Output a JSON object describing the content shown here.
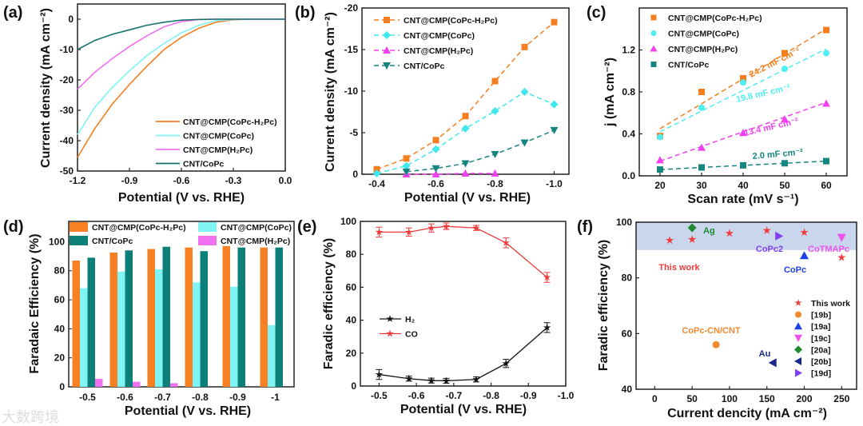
{
  "watermark": "大数跨境",
  "chart_data": [
    {
      "type": "line",
      "panel_label": "(a)",
      "xlabel": "Potential (V vs. RHE)",
      "ylabel": "Current density (mA cm⁻²)",
      "xlim": [
        -1.2,
        0
      ],
      "ylim": [
        -50,
        5
      ],
      "xticks": [
        -1.2,
        -0.9,
        -0.6,
        -0.3,
        0
      ],
      "xtick_labels": [
        "-1.2",
        "-0.9",
        "-0.6",
        "-0.3",
        "0.0"
      ],
      "yticks": [
        0,
        -10,
        -20,
        -30,
        -40,
        -50
      ],
      "ytick_labels": [
        "0",
        "-10",
        "-20",
        "-30",
        "-40",
        "-50"
      ],
      "x": [
        -1.2,
        -1.1,
        -1.0,
        -0.9,
        -0.8,
        -0.7,
        -0.6,
        -0.5,
        -0.4,
        -0.3,
        -0.2,
        -0.1,
        0
      ],
      "series": [
        {
          "name": "CNT@CMP(CoPc-H₂Pc)",
          "color": "#f47f20",
          "y": [
            -45.5,
            -36,
            -28,
            -21.5,
            -15.5,
            -10,
            -6,
            -3,
            -1,
            -0.2,
            0,
            0,
            0
          ]
        },
        {
          "name": "CNT@CMP(CoPc)",
          "color": "#7ff3f3",
          "y": [
            -38,
            -29,
            -22.5,
            -17,
            -12,
            -8,
            -4.5,
            -2,
            -0.5,
            -0.1,
            0,
            0,
            0
          ]
        },
        {
          "name": "CNT@CMP(H₂Pc)",
          "color": "#f070f0",
          "y": [
            -23,
            -17.5,
            -13,
            -9,
            -5.5,
            -2.5,
            -0.8,
            -0.1,
            0,
            0,
            0,
            0,
            0
          ]
        },
        {
          "name": "CNT/CoPc",
          "color": "#16716c",
          "y": [
            -10,
            -7,
            -5,
            -3.5,
            -2,
            -1,
            -0.3,
            -0.1,
            0,
            0,
            0,
            0,
            0
          ]
        }
      ],
      "legend": "bottom-right"
    },
    {
      "type": "line",
      "panel_label": "(b)",
      "xlabel": "Potential (V vs. RHE)",
      "ylabel": "Current density (mA cm⁻²)",
      "xlim": [
        -0.35,
        -1.05
      ],
      "ylim": [
        0,
        -20
      ],
      "xticks": [
        -0.4,
        -0.6,
        -0.8,
        -1.0
      ],
      "xtick_labels": [
        "-0.4",
        "-0.6",
        "-0.8",
        "-1.0"
      ],
      "yticks": [
        0,
        -5,
        -10,
        -15,
        -20
      ],
      "ytick_labels": [
        "0",
        "-5",
        "-10",
        "-15",
        "-20"
      ],
      "series": [
        {
          "name": "CNT@CMP(CoPc-H₂Pc)",
          "color": "#f47f20",
          "marker": "square",
          "x": [
            -0.4,
            -0.5,
            -0.6,
            -0.7,
            -0.8,
            -0.9,
            -1.0
          ],
          "y": [
            -0.6,
            -1.9,
            -4.1,
            -7.0,
            -11.2,
            -15.3,
            -18.3
          ]
        },
        {
          "name": "CNT@CMP(CoPc)",
          "color": "#3ee8ee",
          "marker": "diamond",
          "x": [
            -0.4,
            -0.5,
            -0.6,
            -0.7,
            -0.8,
            -0.9,
            -1.0
          ],
          "y": [
            -0.1,
            -1.0,
            -3.0,
            -5.5,
            -7.6,
            -9.9,
            -8.4
          ]
        },
        {
          "name": "CNT@CMP(H₂Pc)",
          "color": "#f040f0",
          "marker": "triUp",
          "x": [
            -0.5,
            -0.6,
            -0.7,
            -0.8
          ],
          "y": [
            0,
            0,
            -0.1,
            -0.1
          ]
        },
        {
          "name": "CNT/CoPc",
          "color": "#15857f",
          "marker": "triDown",
          "x": [
            -0.5,
            -0.6,
            -0.7,
            -0.8,
            -0.9,
            -1.0
          ],
          "y": [
            -0.3,
            -0.7,
            -1.3,
            -2.4,
            -3.8,
            -5.3
          ]
        }
      ],
      "legend": "top-left"
    },
    {
      "type": "scatter",
      "panel_label": "(c)",
      "xlabel": "Scan rate (mV s⁻¹)",
      "ylabel": "j (mA cm⁻²)",
      "xlim": [
        15,
        65
      ],
      "ylim": [
        0,
        1.6
      ],
      "xticks": [
        20,
        30,
        40,
        50,
        60
      ],
      "xtick_labels": [
        "20",
        "30",
        "40",
        "50",
        "60"
      ],
      "yticks": [
        0,
        0.4,
        0.8,
        1.2
      ],
      "ytick_labels": [
        "0.0",
        "0.4",
        "0.8",
        "1.2"
      ],
      "x": [
        20,
        30,
        40,
        50,
        60
      ],
      "series": [
        {
          "name": "CNT@CMP(CoPc-H₂Pc)",
          "color": "#f47f20",
          "marker": "square",
          "y": [
            0.38,
            0.8,
            0.93,
            1.17,
            1.39
          ],
          "fit": [
            0.45,
            1.4
          ],
          "annotation": "24.2 mF cm⁻²"
        },
        {
          "name": "CNT@CMP(CoPc)",
          "color": "#50eef0",
          "marker": "circle",
          "y": [
            0.37,
            0.65,
            0.89,
            1.02,
            1.17
          ],
          "fit": [
            0.42,
            1.21
          ],
          "annotation": "19.8 mF cm⁻²"
        },
        {
          "name": "CNT@CMP(H₂Pc)",
          "color": "#f040f0",
          "marker": "triUp",
          "y": [
            0.15,
            0.27,
            0.41,
            0.54,
            0.69
          ],
          "fit": [
            0.14,
            0.7
          ],
          "annotation": "13.4 mF cm⁻²"
        },
        {
          "name": "CNT/CoPc",
          "color": "#15857f",
          "marker": "square",
          "y": [
            0.06,
            0.08,
            0.1,
            0.12,
            0.14
          ],
          "fit": [
            0.06,
            0.14
          ],
          "annotation": "2.0 mF cm⁻²"
        }
      ],
      "legend": "top-left"
    },
    {
      "type": "bar",
      "panel_label": "(d)",
      "xlabel": "Potential (V vs. RHE)",
      "ylabel": "Faradaic Efficiency (%)",
      "ylim": [
        0,
        114
      ],
      "categories": [
        "-0.5",
        "-0.6",
        "-0.7",
        "-0.8",
        "-0.9",
        "-1"
      ],
      "yticks": [
        0,
        20,
        40,
        60,
        80,
        100
      ],
      "ytick_labels": [
        "0",
        "20",
        "40",
        "60",
        "80",
        "100"
      ],
      "series": [
        {
          "name": "CNT@CMP(CoPc-H₂Pc)",
          "color": "#f68022",
          "values": [
            87,
            92.5,
            95,
            96,
            97,
            96
          ]
        },
        {
          "name": "CNT@CMP(CoPc)",
          "color": "#80f4f4",
          "values": [
            68,
            79.5,
            81,
            72,
            69,
            42.5
          ]
        },
        {
          "name": "CNT/CoPc",
          "color": "#0b7f78",
          "values": [
            89,
            94,
            96.5,
            93.5,
            96,
            96
          ]
        },
        {
          "name": "CNT@CMP(H₂Pc)",
          "color": "#f070f0",
          "values": [
            5.5,
            3.5,
            2.5,
            0,
            0,
            0
          ]
        }
      ],
      "legend": "top"
    },
    {
      "type": "line",
      "panel_label": "(e)",
      "xlabel": "Potential (V vs. RHE)",
      "ylabel": "Faradic efficiency (%)",
      "xlim": [
        -0.45,
        -1.0
      ],
      "ylim": [
        0,
        100
      ],
      "xticks": [
        -0.5,
        -0.6,
        -0.7,
        -0.8,
        -0.9,
        -1.0
      ],
      "xtick_labels": [
        "-0.5",
        "-0.6",
        "-0.7",
        "-0.8",
        "-0.9",
        "-1.0"
      ],
      "yticks": [
        0,
        20,
        40,
        60,
        80,
        100
      ],
      "ytick_labels": [
        "0",
        "20",
        "40",
        "60",
        "80",
        "100"
      ],
      "x": [
        -0.5,
        -0.58,
        -0.64,
        -0.68,
        -0.76,
        -0.84,
        -0.95
      ],
      "series": [
        {
          "name": "H₂",
          "color": "#111111",
          "marker": "star",
          "y": [
            7,
            4.5,
            3.3,
            3.2,
            4,
            13.7,
            35.5
          ],
          "err": [
            3,
            1.5,
            1.5,
            1.5,
            1.5,
            2.5,
            3
          ]
        },
        {
          "name": "CO",
          "color": "#f03c3c",
          "marker": "star",
          "y": [
            93.5,
            93.5,
            96,
            97,
            96,
            87,
            66
          ],
          "err": [
            3,
            2.5,
            2.5,
            2,
            1.5,
            3,
            3
          ]
        }
      ],
      "legend": "middle-left"
    },
    {
      "type": "scatter",
      "panel_label": "(f)",
      "xlabel": "Current dencity (mA cm⁻²)",
      "ylabel": "Faradic efficiency (%)",
      "xlim": [
        -25,
        270
      ],
      "ylim": [
        40,
        100
      ],
      "xticks": [
        0,
        50,
        100,
        150,
        200,
        250
      ],
      "xtick_labels": [
        "0",
        "50",
        "100",
        "150",
        "200",
        "250"
      ],
      "yticks": [
        40,
        60,
        80,
        100
      ],
      "ytick_labels": [
        "40",
        "60",
        "80",
        "100"
      ],
      "shaded_band": [
        90,
        100
      ],
      "band_color": "#c9d6ee",
      "series": [
        {
          "name": "This work",
          "color": "#f03c3c",
          "marker": "star",
          "x": [
            20,
            50,
            100,
            150,
            200,
            250
          ],
          "y": [
            93.5,
            93.8,
            96,
            97,
            96.3,
            87.3
          ]
        },
        {
          "name": "[19b]",
          "color": "#f28a30",
          "marker": "circle",
          "x": [
            82
          ],
          "y": [
            56
          ]
        },
        {
          "name": "[19a]",
          "color": "#1e40e8",
          "marker": "triUp",
          "x": [
            200
          ],
          "y": [
            88
          ]
        },
        {
          "name": "[19c]",
          "color": "#f050f0",
          "marker": "triDown",
          "x": [
            250
          ],
          "y": [
            94.5
          ]
        },
        {
          "name": "[20a]",
          "color": "#1f8a2f",
          "marker": "diamond",
          "x": [
            50
          ],
          "y": [
            98
          ]
        },
        {
          "name": "[20b]",
          "color": "#1a2a8a",
          "marker": "triLeft",
          "x": [
            158
          ],
          "y": [
            49.5
          ]
        },
        {
          "name": "[19d]",
          "color": "#8040f0",
          "marker": "triRight",
          "x": [
            166
          ],
          "y": [
            95
          ]
        }
      ],
      "point_labels": [
        {
          "text": "Ag",
          "color": "#1f8a2f"
        },
        {
          "text": "This work",
          "color": "#f03c3c"
        },
        {
          "text": "CoPc2",
          "color": "#8040f0"
        },
        {
          "text": "CoTMAPc",
          "color": "#f050f0"
        },
        {
          "text": "CoPc",
          "color": "#1e40e8"
        },
        {
          "text": "CoPc-CN/CNT",
          "color": "#f28a30"
        },
        {
          "text": "Au",
          "color": "#1a2a8a"
        }
      ],
      "legend": "bottom-right"
    }
  ]
}
